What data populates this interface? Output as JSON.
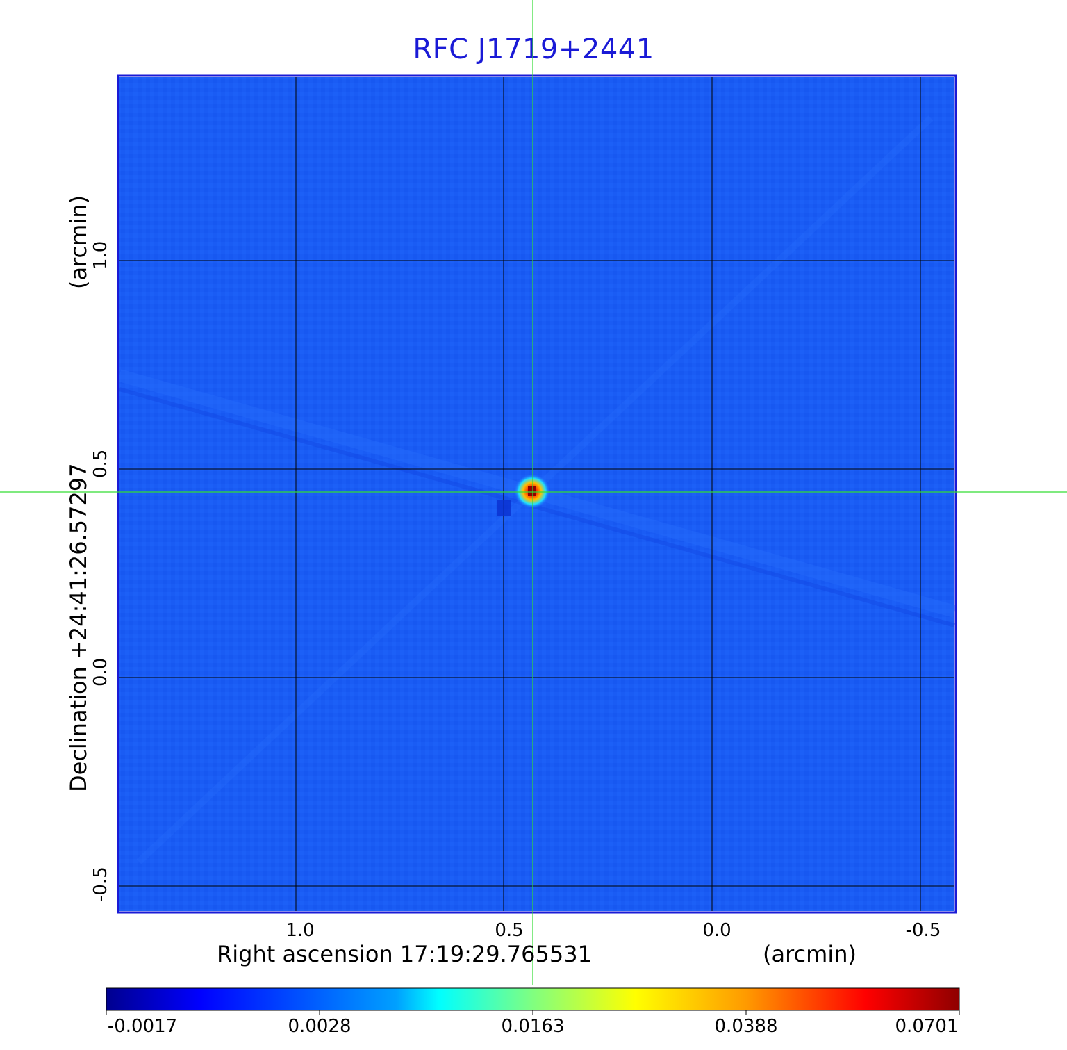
{
  "title": "RFC J1719+2441",
  "axes": {
    "x_label": "Right ascension  17:19:29.765531",
    "x_unit": "(arcmin)",
    "y_label": "Declination  +24:41:26.57297",
    "y_unit": "(arcmin)",
    "x_ticks": [
      "1.0",
      "0.5",
      "0.0",
      "-0.5"
    ],
    "y_ticks": [
      "1.0",
      "0.5",
      "0.0",
      "-0.5"
    ]
  },
  "colorbar": {
    "ticks": [
      "-0.0017",
      "0.0028",
      "0.0163",
      "0.0388",
      "0.0701"
    ],
    "colormap": "jet"
  },
  "image": {
    "kind": "radio interferometric map",
    "source_peak_color": "#b00000",
    "background_color": "#1a5cff",
    "crosshair_color": "#33dd33",
    "grid_color": "#000000",
    "frame_color": "#1a1ad6"
  }
}
